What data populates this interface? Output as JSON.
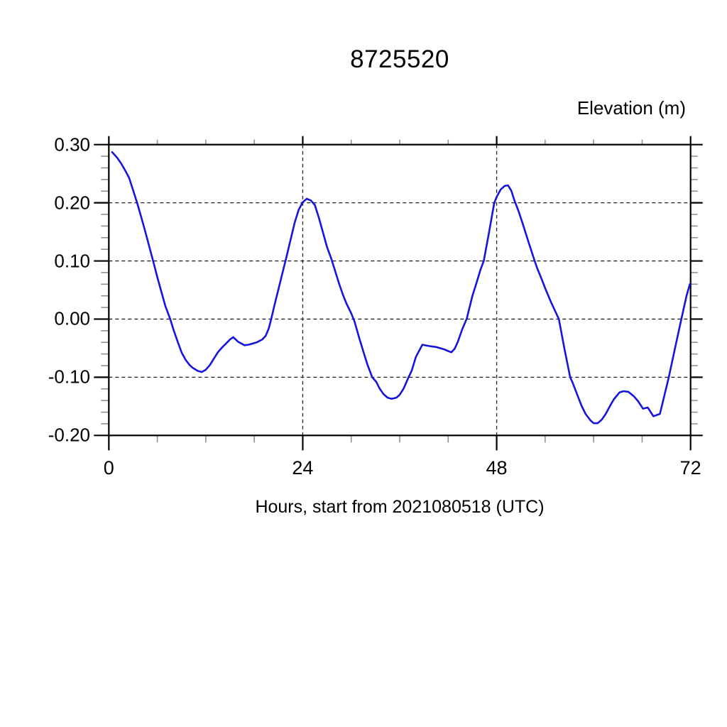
{
  "chart_data": {
    "type": "line",
    "title": "8725520",
    "ylabel": "Elevation (m)",
    "xlabel": "Hours, start from 2021080518 (UTC)",
    "xlim": [
      0,
      72
    ],
    "ylim": [
      -0.2,
      0.3
    ],
    "xticks": {
      "major": [
        0,
        24,
        48,
        72
      ],
      "minor_step": 6
    },
    "yticks": {
      "major": [
        0.3,
        0.2,
        0.1,
        0.0,
        -0.1,
        -0.2
      ],
      "labels": [
        "0.30",
        "0.20",
        "0.10",
        "0.00",
        "-0.10",
        "-0.20"
      ],
      "minor_step": 0.02
    },
    "grid": {
      "x_gridlines": [
        24,
        48
      ],
      "y_gridlines": [
        0.2,
        0.1,
        0.0,
        -0.1
      ],
      "style": "dashed"
    },
    "legend": "none",
    "colors": {
      "line": "#1515dd",
      "axis": "#000000",
      "minor_tick": "#909090",
      "grid": "#222222"
    },
    "series": [
      {
        "name": "elevation",
        "points": [
          [
            0.4,
            0.287
          ],
          [
            1,
            0.278
          ],
          [
            1.5,
            0.268
          ],
          [
            2,
            0.256
          ],
          [
            2.5,
            0.243
          ],
          [
            3,
            0.222
          ],
          [
            3.5,
            0.2
          ],
          [
            4,
            0.176
          ],
          [
            4.5,
            0.151
          ],
          [
            5,
            0.125
          ],
          [
            5.5,
            0.099
          ],
          [
            6,
            0.072
          ],
          [
            6.5,
            0.047
          ],
          [
            7,
            0.022
          ],
          [
            7.6,
            0.0
          ],
          [
            8,
            -0.018
          ],
          [
            8.5,
            -0.038
          ],
          [
            9,
            -0.057
          ],
          [
            9.5,
            -0.07
          ],
          [
            10,
            -0.079
          ],
          [
            10.4,
            -0.084
          ],
          [
            11,
            -0.089
          ],
          [
            11.5,
            -0.091
          ],
          [
            12,
            -0.087
          ],
          [
            12.5,
            -0.079
          ],
          [
            13,
            -0.068
          ],
          [
            13.5,
            -0.057
          ],
          [
            14,
            -0.049
          ],
          [
            14.5,
            -0.042
          ],
          [
            15,
            -0.035
          ],
          [
            15.4,
            -0.031
          ],
          [
            16,
            -0.039
          ],
          [
            16.8,
            -0.045
          ],
          [
            17.3,
            -0.044
          ],
          [
            17.8,
            -0.042
          ],
          [
            18.3,
            -0.04
          ],
          [
            19,
            -0.035
          ],
          [
            19.4,
            -0.029
          ],
          [
            19.8,
            -0.016
          ],
          [
            20.1,
            0.0
          ],
          [
            20.5,
            0.024
          ],
          [
            21,
            0.052
          ],
          [
            21.5,
            0.08
          ],
          [
            22,
            0.108
          ],
          [
            22.5,
            0.137
          ],
          [
            23,
            0.166
          ],
          [
            23.5,
            0.188
          ],
          [
            24,
            0.201
          ],
          [
            24.5,
            0.207
          ],
          [
            25,
            0.204
          ],
          [
            25.5,
            0.196
          ],
          [
            26,
            0.174
          ],
          [
            26.5,
            0.149
          ],
          [
            27,
            0.124
          ],
          [
            27.5,
            0.105
          ],
          [
            28,
            0.083
          ],
          [
            28.5,
            0.061
          ],
          [
            29,
            0.041
          ],
          [
            29.4,
            0.027
          ],
          [
            30,
            0.01
          ],
          [
            30.4,
            -0.004
          ],
          [
            31,
            -0.033
          ],
          [
            31.5,
            -0.056
          ],
          [
            32,
            -0.078
          ],
          [
            32.6,
            -0.1
          ],
          [
            33.1,
            -0.108
          ],
          [
            33.5,
            -0.119
          ],
          [
            34,
            -0.129
          ],
          [
            34.5,
            -0.135
          ],
          [
            35,
            -0.137
          ],
          [
            35.6,
            -0.135
          ],
          [
            36,
            -0.13
          ],
          [
            36.5,
            -0.119
          ],
          [
            37,
            -0.103
          ],
          [
            37.5,
            -0.088
          ],
          [
            38,
            -0.065
          ],
          [
            38.8,
            -0.044
          ],
          [
            39.5,
            -0.046
          ],
          [
            40,
            -0.047
          ],
          [
            40.5,
            -0.048
          ],
          [
            41,
            -0.05
          ],
          [
            41.5,
            -0.052
          ],
          [
            42,
            -0.055
          ],
          [
            42.4,
            -0.057
          ],
          [
            42.8,
            -0.051
          ],
          [
            43.2,
            -0.039
          ],
          [
            43.7,
            -0.019
          ],
          [
            44.3,
            0.001
          ],
          [
            45,
            0.04
          ],
          [
            45.5,
            0.062
          ],
          [
            46,
            0.085
          ],
          [
            46.4,
            0.1
          ],
          [
            47,
            0.145
          ],
          [
            47.7,
            0.2
          ],
          [
            48,
            0.21
          ],
          [
            48.5,
            0.223
          ],
          [
            49,
            0.229
          ],
          [
            49.4,
            0.23
          ],
          [
            49.8,
            0.221
          ],
          [
            50.2,
            0.204
          ],
          [
            50.7,
            0.186
          ],
          [
            51.2,
            0.165
          ],
          [
            52,
            0.13
          ],
          [
            52.7,
            0.1
          ],
          [
            53,
            0.088
          ],
          [
            53.5,
            0.071
          ],
          [
            54,
            0.053
          ],
          [
            54.7,
            0.03
          ],
          [
            55.7,
            0.0
          ],
          [
            56.4,
            -0.052
          ],
          [
            57.1,
            -0.1
          ],
          [
            57.4,
            -0.109
          ],
          [
            58,
            -0.131
          ],
          [
            58.5,
            -0.149
          ],
          [
            59,
            -0.163
          ],
          [
            59.6,
            -0.174
          ],
          [
            60,
            -0.179
          ],
          [
            60.5,
            -0.179
          ],
          [
            61,
            -0.173
          ],
          [
            61.5,
            -0.163
          ],
          [
            62,
            -0.15
          ],
          [
            62.5,
            -0.138
          ],
          [
            63.2,
            -0.126
          ],
          [
            63.7,
            -0.124
          ],
          [
            64.3,
            -0.125
          ],
          [
            65,
            -0.133
          ],
          [
            65.5,
            -0.141
          ],
          [
            66.1,
            -0.154
          ],
          [
            66.7,
            -0.152
          ],
          [
            67.4,
            -0.167
          ],
          [
            68.2,
            -0.163
          ],
          [
            69.3,
            -0.1
          ],
          [
            70,
            -0.055
          ],
          [
            70.5,
            -0.023
          ],
          [
            71,
            0.009
          ],
          [
            71.5,
            0.04
          ],
          [
            71.9,
            0.06
          ]
        ]
      }
    ]
  }
}
